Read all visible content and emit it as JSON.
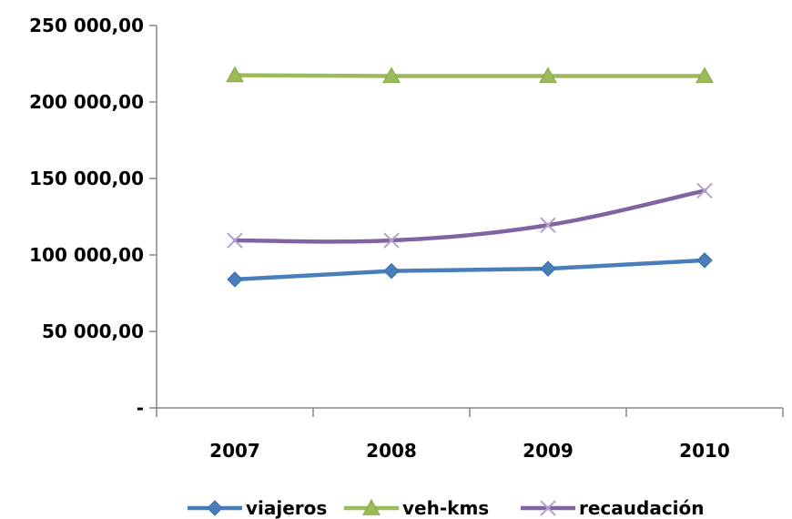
{
  "chart_data": {
    "type": "line",
    "categories": [
      "2007",
      "2008",
      "2009",
      "2010"
    ],
    "ylim": [
      0,
      250000
    ],
    "yticks": [
      0,
      50000,
      100000,
      150000,
      200000,
      250000
    ],
    "ytick_labels": [
      "-",
      "50 000,00",
      "100 000,00",
      "150 000,00",
      "200 000,00",
      "250 000,00"
    ],
    "grid": false,
    "legend_position": "bottom",
    "series": [
      {
        "name": "viajeros",
        "values": [
          84000,
          89500,
          91000,
          96500
        ],
        "color": "#4a7ebb",
        "marker": "diamond"
      },
      {
        "name": "veh-kms",
        "values": [
          217500,
          217000,
          217000,
          217000
        ],
        "color": "#9bbb59",
        "marker": "triangle"
      },
      {
        "name": "recaudación",
        "values": [
          109500,
          109500,
          119500,
          142000
        ],
        "color": "#8064a2",
        "marker": "x"
      }
    ]
  }
}
